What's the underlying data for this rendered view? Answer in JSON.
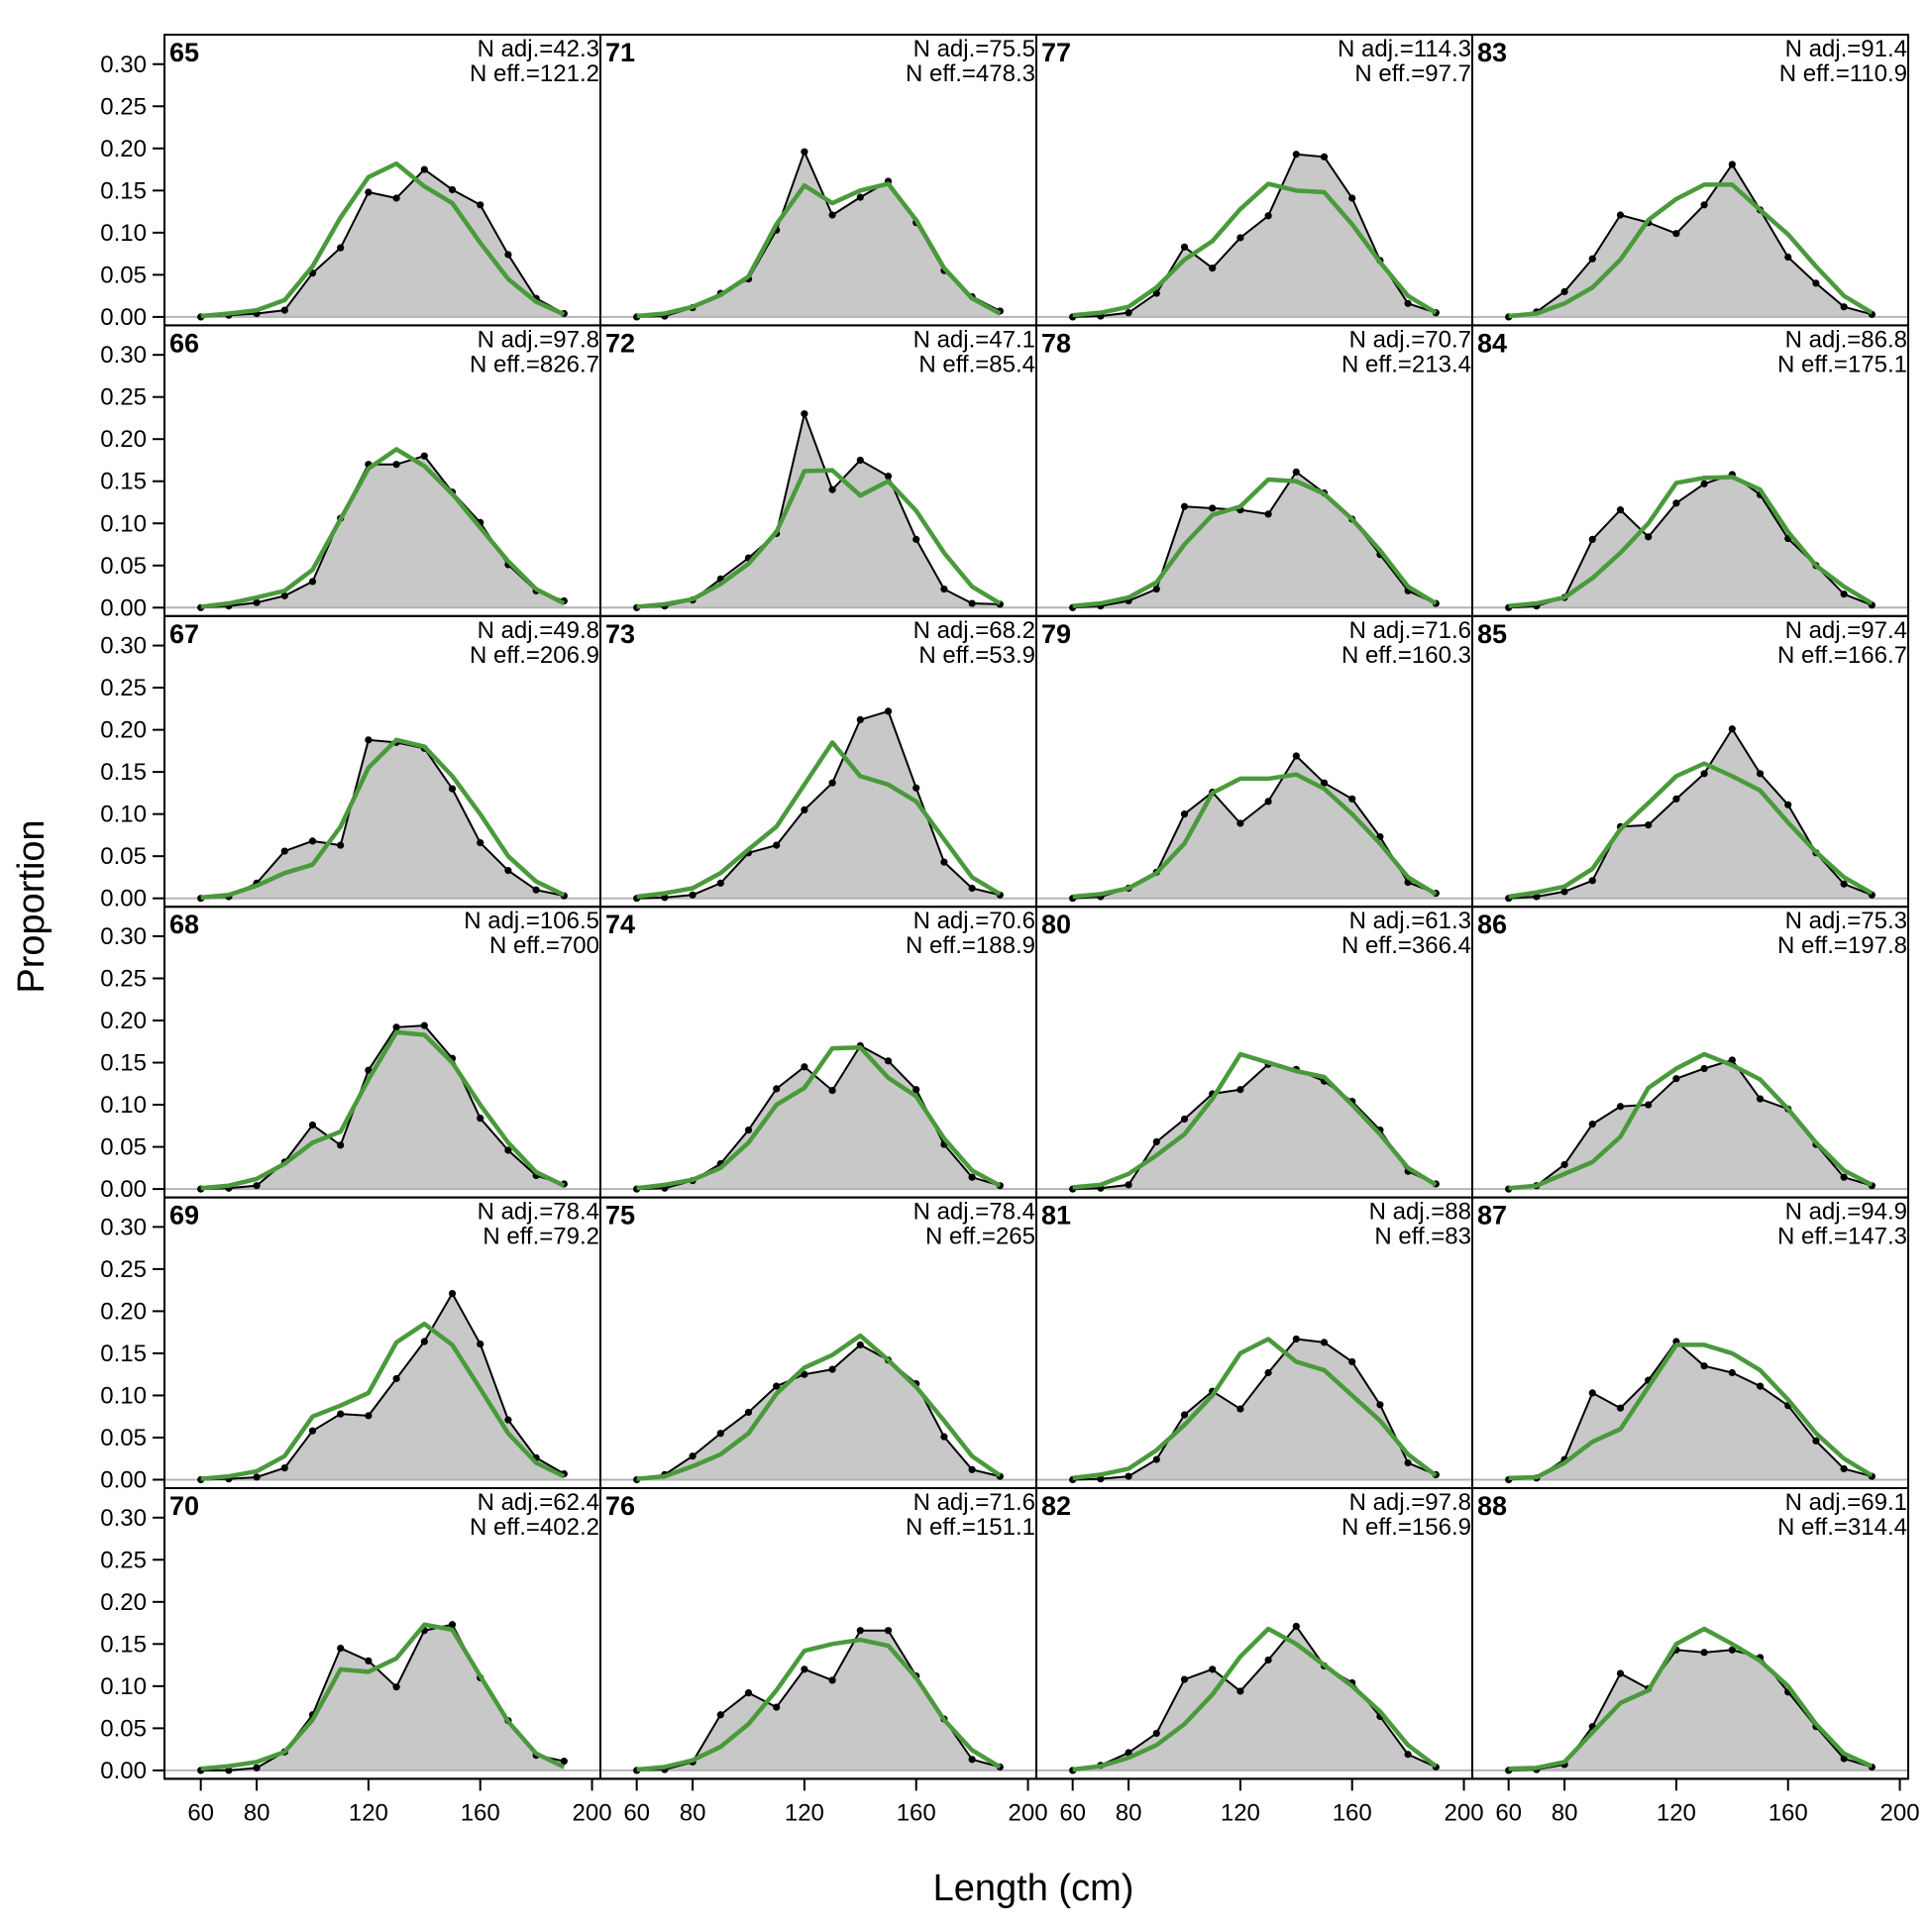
{
  "chart_data": {
    "type": "area",
    "xlabel": "Length (cm)",
    "ylabel": "Proportion",
    "xlim": [
      47,
      203
    ],
    "ylim": [
      -0.01,
      0.335
    ],
    "x_ticks": [
      60,
      80,
      120,
      160,
      200
    ],
    "y_ticks": [
      "0.00",
      "0.05",
      "0.10",
      "0.15",
      "0.20",
      "0.25",
      "0.30"
    ],
    "grid": false,
    "layout": {
      "rows": 6,
      "cols": 4,
      "order": "column-major"
    },
    "colors": {
      "observed_fill": "#c8c8c8",
      "observed_line": "#000000",
      "expected_line": "#4a9a3c",
      "zero_line": "#b4b4b4"
    },
    "x": [
      60,
      70,
      80,
      90,
      100,
      110,
      120,
      130,
      140,
      150,
      160,
      170,
      180,
      190
    ],
    "panels": [
      {
        "id": "65",
        "n_adj": "N adj.=42.3",
        "n_eff": "N eff.=121.2",
        "observed": [
          0.0,
          0.002,
          0.004,
          0.008,
          0.052,
          0.082,
          0.148,
          0.141,
          0.175,
          0.151,
          0.133,
          0.074,
          0.022,
          0.004
        ],
        "expected": [
          0.001,
          0.004,
          0.008,
          0.02,
          0.06,
          0.118,
          0.166,
          0.182,
          0.155,
          0.135,
          0.088,
          0.045,
          0.018,
          0.003
        ]
      },
      {
        "id": "66",
        "n_adj": "N adj.=97.8",
        "n_eff": "N eff.=826.7",
        "observed": [
          0.0,
          0.002,
          0.006,
          0.014,
          0.031,
          0.106,
          0.17,
          0.17,
          0.18,
          0.137,
          0.101,
          0.051,
          0.02,
          0.008
        ],
        "expected": [
          0.001,
          0.005,
          0.012,
          0.02,
          0.045,
          0.105,
          0.165,
          0.188,
          0.168,
          0.135,
          0.095,
          0.055,
          0.022,
          0.005
        ]
      },
      {
        "id": "67",
        "n_adj": "N adj.=49.8",
        "n_eff": "N eff.=206.9",
        "observed": [
          0.0,
          0.002,
          0.018,
          0.056,
          0.068,
          0.063,
          0.188,
          0.185,
          0.178,
          0.13,
          0.066,
          0.033,
          0.01,
          0.003
        ],
        "expected": [
          0.001,
          0.004,
          0.015,
          0.03,
          0.04,
          0.085,
          0.155,
          0.188,
          0.18,
          0.145,
          0.1,
          0.05,
          0.02,
          0.004
        ]
      },
      {
        "id": "68",
        "n_adj": "N adj.=106.5",
        "n_eff": "N eff.=700",
        "observed": [
          0.0,
          0.001,
          0.004,
          0.032,
          0.076,
          0.052,
          0.141,
          0.192,
          0.194,
          0.155,
          0.084,
          0.046,
          0.016,
          0.006
        ],
        "expected": [
          0.001,
          0.004,
          0.012,
          0.03,
          0.055,
          0.068,
          0.13,
          0.186,
          0.183,
          0.15,
          0.1,
          0.055,
          0.02,
          0.004
        ]
      },
      {
        "id": "69",
        "n_adj": "N adj.=78.4",
        "n_eff": "N eff.=79.2",
        "observed": [
          0.0,
          0.001,
          0.003,
          0.014,
          0.058,
          0.078,
          0.076,
          0.12,
          0.164,
          0.221,
          0.161,
          0.071,
          0.026,
          0.007
        ],
        "expected": [
          0.001,
          0.004,
          0.01,
          0.028,
          0.075,
          0.088,
          0.103,
          0.163,
          0.185,
          0.16,
          0.108,
          0.055,
          0.02,
          0.004
        ]
      },
      {
        "id": "70",
        "n_adj": "N adj.=62.4",
        "n_eff": "N eff.=402.2",
        "observed": [
          0.0,
          0.0,
          0.003,
          0.022,
          0.066,
          0.145,
          0.13,
          0.099,
          0.166,
          0.173,
          0.11,
          0.059,
          0.018,
          0.011
        ],
        "expected": [
          0.002,
          0.005,
          0.01,
          0.022,
          0.06,
          0.12,
          0.117,
          0.133,
          0.173,
          0.167,
          0.112,
          0.058,
          0.02,
          0.004
        ]
      },
      {
        "id": "71",
        "n_adj": "N adj.=75.5",
        "n_eff": "N eff.=478.3",
        "observed": [
          0.0,
          0.001,
          0.011,
          0.028,
          0.045,
          0.103,
          0.196,
          0.121,
          0.142,
          0.161,
          0.112,
          0.055,
          0.024,
          0.007
        ],
        "expected": [
          0.001,
          0.004,
          0.012,
          0.026,
          0.048,
          0.11,
          0.156,
          0.135,
          0.15,
          0.158,
          0.115,
          0.058,
          0.022,
          0.004
        ]
      },
      {
        "id": "72",
        "n_adj": "N adj.=47.1",
        "n_eff": "N eff.=85.4",
        "observed": [
          0.0,
          0.002,
          0.009,
          0.034,
          0.059,
          0.088,
          0.23,
          0.14,
          0.175,
          0.156,
          0.081,
          0.022,
          0.005,
          0.004
        ],
        "expected": [
          0.001,
          0.004,
          0.01,
          0.028,
          0.052,
          0.09,
          0.162,
          0.163,
          0.133,
          0.15,
          0.115,
          0.065,
          0.025,
          0.005
        ]
      },
      {
        "id": "73",
        "n_adj": "N adj.=68.2",
        "n_eff": "N eff.=53.9",
        "observed": [
          0.0,
          0.001,
          0.004,
          0.018,
          0.054,
          0.063,
          0.105,
          0.137,
          0.212,
          0.222,
          0.131,
          0.043,
          0.012,
          0.004
        ],
        "expected": [
          0.002,
          0.006,
          0.012,
          0.03,
          0.058,
          0.085,
          0.135,
          0.185,
          0.145,
          0.135,
          0.115,
          0.07,
          0.025,
          0.005
        ]
      },
      {
        "id": "74",
        "n_adj": "N adj.=70.6",
        "n_eff": "N eff.=188.9",
        "observed": [
          0.0,
          0.001,
          0.01,
          0.03,
          0.07,
          0.119,
          0.145,
          0.117,
          0.17,
          0.152,
          0.118,
          0.053,
          0.014,
          0.004
        ],
        "expected": [
          0.001,
          0.005,
          0.011,
          0.025,
          0.055,
          0.1,
          0.12,
          0.167,
          0.168,
          0.132,
          0.11,
          0.06,
          0.022,
          0.004
        ]
      },
      {
        "id": "75",
        "n_adj": "N adj.=78.4",
        "n_eff": "N eff.=265",
        "observed": [
          0.0,
          0.006,
          0.028,
          0.055,
          0.08,
          0.111,
          0.125,
          0.131,
          0.16,
          0.142,
          0.114,
          0.051,
          0.012,
          0.004
        ],
        "expected": [
          0.001,
          0.004,
          0.016,
          0.03,
          0.055,
          0.102,
          0.133,
          0.148,
          0.171,
          0.142,
          0.11,
          0.07,
          0.028,
          0.005
        ]
      },
      {
        "id": "76",
        "n_adj": "N adj.=71.6",
        "n_eff": "N eff.=151.1",
        "observed": [
          0.0,
          0.001,
          0.01,
          0.066,
          0.092,
          0.075,
          0.12,
          0.107,
          0.166,
          0.166,
          0.112,
          0.061,
          0.013,
          0.004
        ],
        "expected": [
          0.001,
          0.004,
          0.012,
          0.028,
          0.055,
          0.095,
          0.142,
          0.15,
          0.155,
          0.148,
          0.11,
          0.06,
          0.024,
          0.004
        ]
      },
      {
        "id": "77",
        "n_adj": "N adj.=114.3",
        "n_eff": "N eff.=97.7",
        "observed": [
          0.0,
          0.001,
          0.005,
          0.028,
          0.083,
          0.058,
          0.094,
          0.12,
          0.193,
          0.19,
          0.141,
          0.067,
          0.016,
          0.005
        ],
        "expected": [
          0.002,
          0.005,
          0.012,
          0.035,
          0.068,
          0.09,
          0.128,
          0.158,
          0.15,
          0.148,
          0.11,
          0.065,
          0.025,
          0.005
        ]
      },
      {
        "id": "78",
        "n_adj": "N adj.=70.7",
        "n_eff": "N eff.=213.4",
        "observed": [
          0.0,
          0.002,
          0.008,
          0.022,
          0.12,
          0.118,
          0.116,
          0.111,
          0.161,
          0.136,
          0.105,
          0.063,
          0.02,
          0.005
        ],
        "expected": [
          0.002,
          0.005,
          0.012,
          0.03,
          0.075,
          0.11,
          0.12,
          0.152,
          0.15,
          0.135,
          0.105,
          0.068,
          0.025,
          0.005
        ]
      },
      {
        "id": "79",
        "n_adj": "N adj.=71.6",
        "n_eff": "N eff.=160.3",
        "observed": [
          0.0,
          0.002,
          0.012,
          0.031,
          0.1,
          0.126,
          0.089,
          0.115,
          0.169,
          0.137,
          0.118,
          0.073,
          0.019,
          0.006
        ],
        "expected": [
          0.002,
          0.005,
          0.012,
          0.03,
          0.065,
          0.125,
          0.142,
          0.142,
          0.147,
          0.13,
          0.1,
          0.065,
          0.025,
          0.005
        ]
      },
      {
        "id": "80",
        "n_adj": "N adj.=61.3",
        "n_eff": "N eff.=366.4",
        "observed": [
          0.0,
          0.001,
          0.005,
          0.056,
          0.083,
          0.113,
          0.118,
          0.148,
          0.142,
          0.128,
          0.104,
          0.07,
          0.021,
          0.006
        ],
        "expected": [
          0.002,
          0.005,
          0.018,
          0.04,
          0.065,
          0.107,
          0.16,
          0.15,
          0.14,
          0.133,
          0.1,
          0.065,
          0.025,
          0.005
        ]
      },
      {
        "id": "81",
        "n_adj": "N adj.=88",
        "n_eff": "N eff.=83",
        "observed": [
          0.0,
          0.001,
          0.004,
          0.024,
          0.077,
          0.105,
          0.084,
          0.127,
          0.167,
          0.163,
          0.14,
          0.089,
          0.02,
          0.006
        ],
        "expected": [
          0.002,
          0.006,
          0.013,
          0.035,
          0.065,
          0.1,
          0.15,
          0.167,
          0.14,
          0.13,
          0.1,
          0.07,
          0.03,
          0.005
        ]
      },
      {
        "id": "82",
        "n_adj": "N adj.=97.8",
        "n_eff": "N eff.=156.9",
        "observed": [
          0.0,
          0.006,
          0.021,
          0.044,
          0.108,
          0.12,
          0.094,
          0.131,
          0.171,
          0.124,
          0.104,
          0.064,
          0.019,
          0.004
        ],
        "expected": [
          0.001,
          0.005,
          0.015,
          0.03,
          0.055,
          0.09,
          0.135,
          0.168,
          0.15,
          0.125,
          0.1,
          0.07,
          0.03,
          0.005
        ]
      },
      {
        "id": "83",
        "n_adj": "N adj.=91.4",
        "n_eff": "N eff.=110.9",
        "observed": [
          0.0,
          0.006,
          0.03,
          0.069,
          0.121,
          0.112,
          0.099,
          0.133,
          0.181,
          0.127,
          0.071,
          0.04,
          0.012,
          0.003
        ],
        "expected": [
          0.001,
          0.004,
          0.016,
          0.035,
          0.068,
          0.115,
          0.14,
          0.157,
          0.157,
          0.127,
          0.098,
          0.06,
          0.025,
          0.005
        ]
      },
      {
        "id": "84",
        "n_adj": "N adj.=86.8",
        "n_eff": "N eff.=175.1",
        "observed": [
          0.0,
          0.002,
          0.012,
          0.081,
          0.116,
          0.084,
          0.124,
          0.147,
          0.158,
          0.134,
          0.082,
          0.05,
          0.016,
          0.003
        ],
        "expected": [
          0.002,
          0.005,
          0.012,
          0.035,
          0.065,
          0.1,
          0.148,
          0.154,
          0.155,
          0.14,
          0.09,
          0.05,
          0.025,
          0.005
        ]
      },
      {
        "id": "85",
        "n_adj": "N adj.=97.4",
        "n_eff": "N eff.=166.7",
        "observed": [
          0.0,
          0.002,
          0.008,
          0.021,
          0.085,
          0.087,
          0.118,
          0.148,
          0.201,
          0.148,
          0.111,
          0.054,
          0.017,
          0.004
        ],
        "expected": [
          0.002,
          0.007,
          0.014,
          0.035,
          0.082,
          0.113,
          0.145,
          0.16,
          0.145,
          0.128,
          0.09,
          0.055,
          0.025,
          0.006
        ]
      },
      {
        "id": "86",
        "n_adj": "N adj.=75.3",
        "n_eff": "N eff.=197.8",
        "observed": [
          0.0,
          0.004,
          0.029,
          0.077,
          0.098,
          0.1,
          0.131,
          0.143,
          0.153,
          0.107,
          0.095,
          0.053,
          0.014,
          0.004
        ],
        "expected": [
          0.001,
          0.004,
          0.018,
          0.032,
          0.062,
          0.12,
          0.143,
          0.16,
          0.147,
          0.13,
          0.095,
          0.055,
          0.022,
          0.005
        ]
      },
      {
        "id": "87",
        "n_adj": "N adj.=94.9",
        "n_eff": "N eff.=147.3",
        "observed": [
          0.0,
          0.002,
          0.024,
          0.103,
          0.085,
          0.118,
          0.164,
          0.135,
          0.127,
          0.111,
          0.088,
          0.046,
          0.013,
          0.004
        ],
        "expected": [
          0.002,
          0.003,
          0.02,
          0.045,
          0.06,
          0.11,
          0.16,
          0.16,
          0.15,
          0.13,
          0.095,
          0.055,
          0.025,
          0.005
        ]
      },
      {
        "id": "88",
        "n_adj": "N adj.=69.1",
        "n_eff": "N eff.=314.4",
        "observed": [
          0.0,
          0.001,
          0.007,
          0.052,
          0.115,
          0.097,
          0.143,
          0.14,
          0.143,
          0.134,
          0.093,
          0.052,
          0.014,
          0.004
        ],
        "expected": [
          0.002,
          0.003,
          0.01,
          0.045,
          0.08,
          0.095,
          0.15,
          0.168,
          0.15,
          0.13,
          0.1,
          0.055,
          0.02,
          0.005
        ]
      }
    ]
  }
}
